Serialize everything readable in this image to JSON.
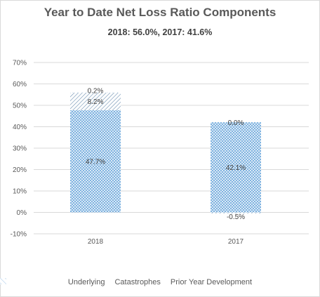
{
  "header": {
    "title": "Year to Date Net Loss Ratio Components",
    "subtitle": "2018: 56.0%, 2017: 41.6%"
  },
  "chart_data": {
    "type": "bar",
    "stacked": true,
    "categories": [
      "2018",
      "2017"
    ],
    "series": [
      {
        "name": "Underlying",
        "values": [
          47.7,
          42.1
        ],
        "labels": [
          "47.7%",
          "42.1%"
        ],
        "color": "#7fb3e0"
      },
      {
        "name": "Catastrophes",
        "values": [
          8.2,
          -0.5
        ],
        "labels": [
          "8.2%",
          "-0.5%"
        ],
        "color": "#6b6b6b"
      },
      {
        "name": "Prior Year Development",
        "values": [
          0.2,
          0.0
        ],
        "labels": [
          "0.2%",
          "0.0%"
        ],
        "color": "#9dc3e6"
      }
    ],
    "y_ticks": [
      "70%",
      "60%",
      "50%",
      "40%",
      "30%",
      "20%",
      "10%",
      "0%",
      "-10%"
    ],
    "ylim": [
      -10,
      70
    ],
    "grid": true,
    "legend_position": "bottom"
  }
}
